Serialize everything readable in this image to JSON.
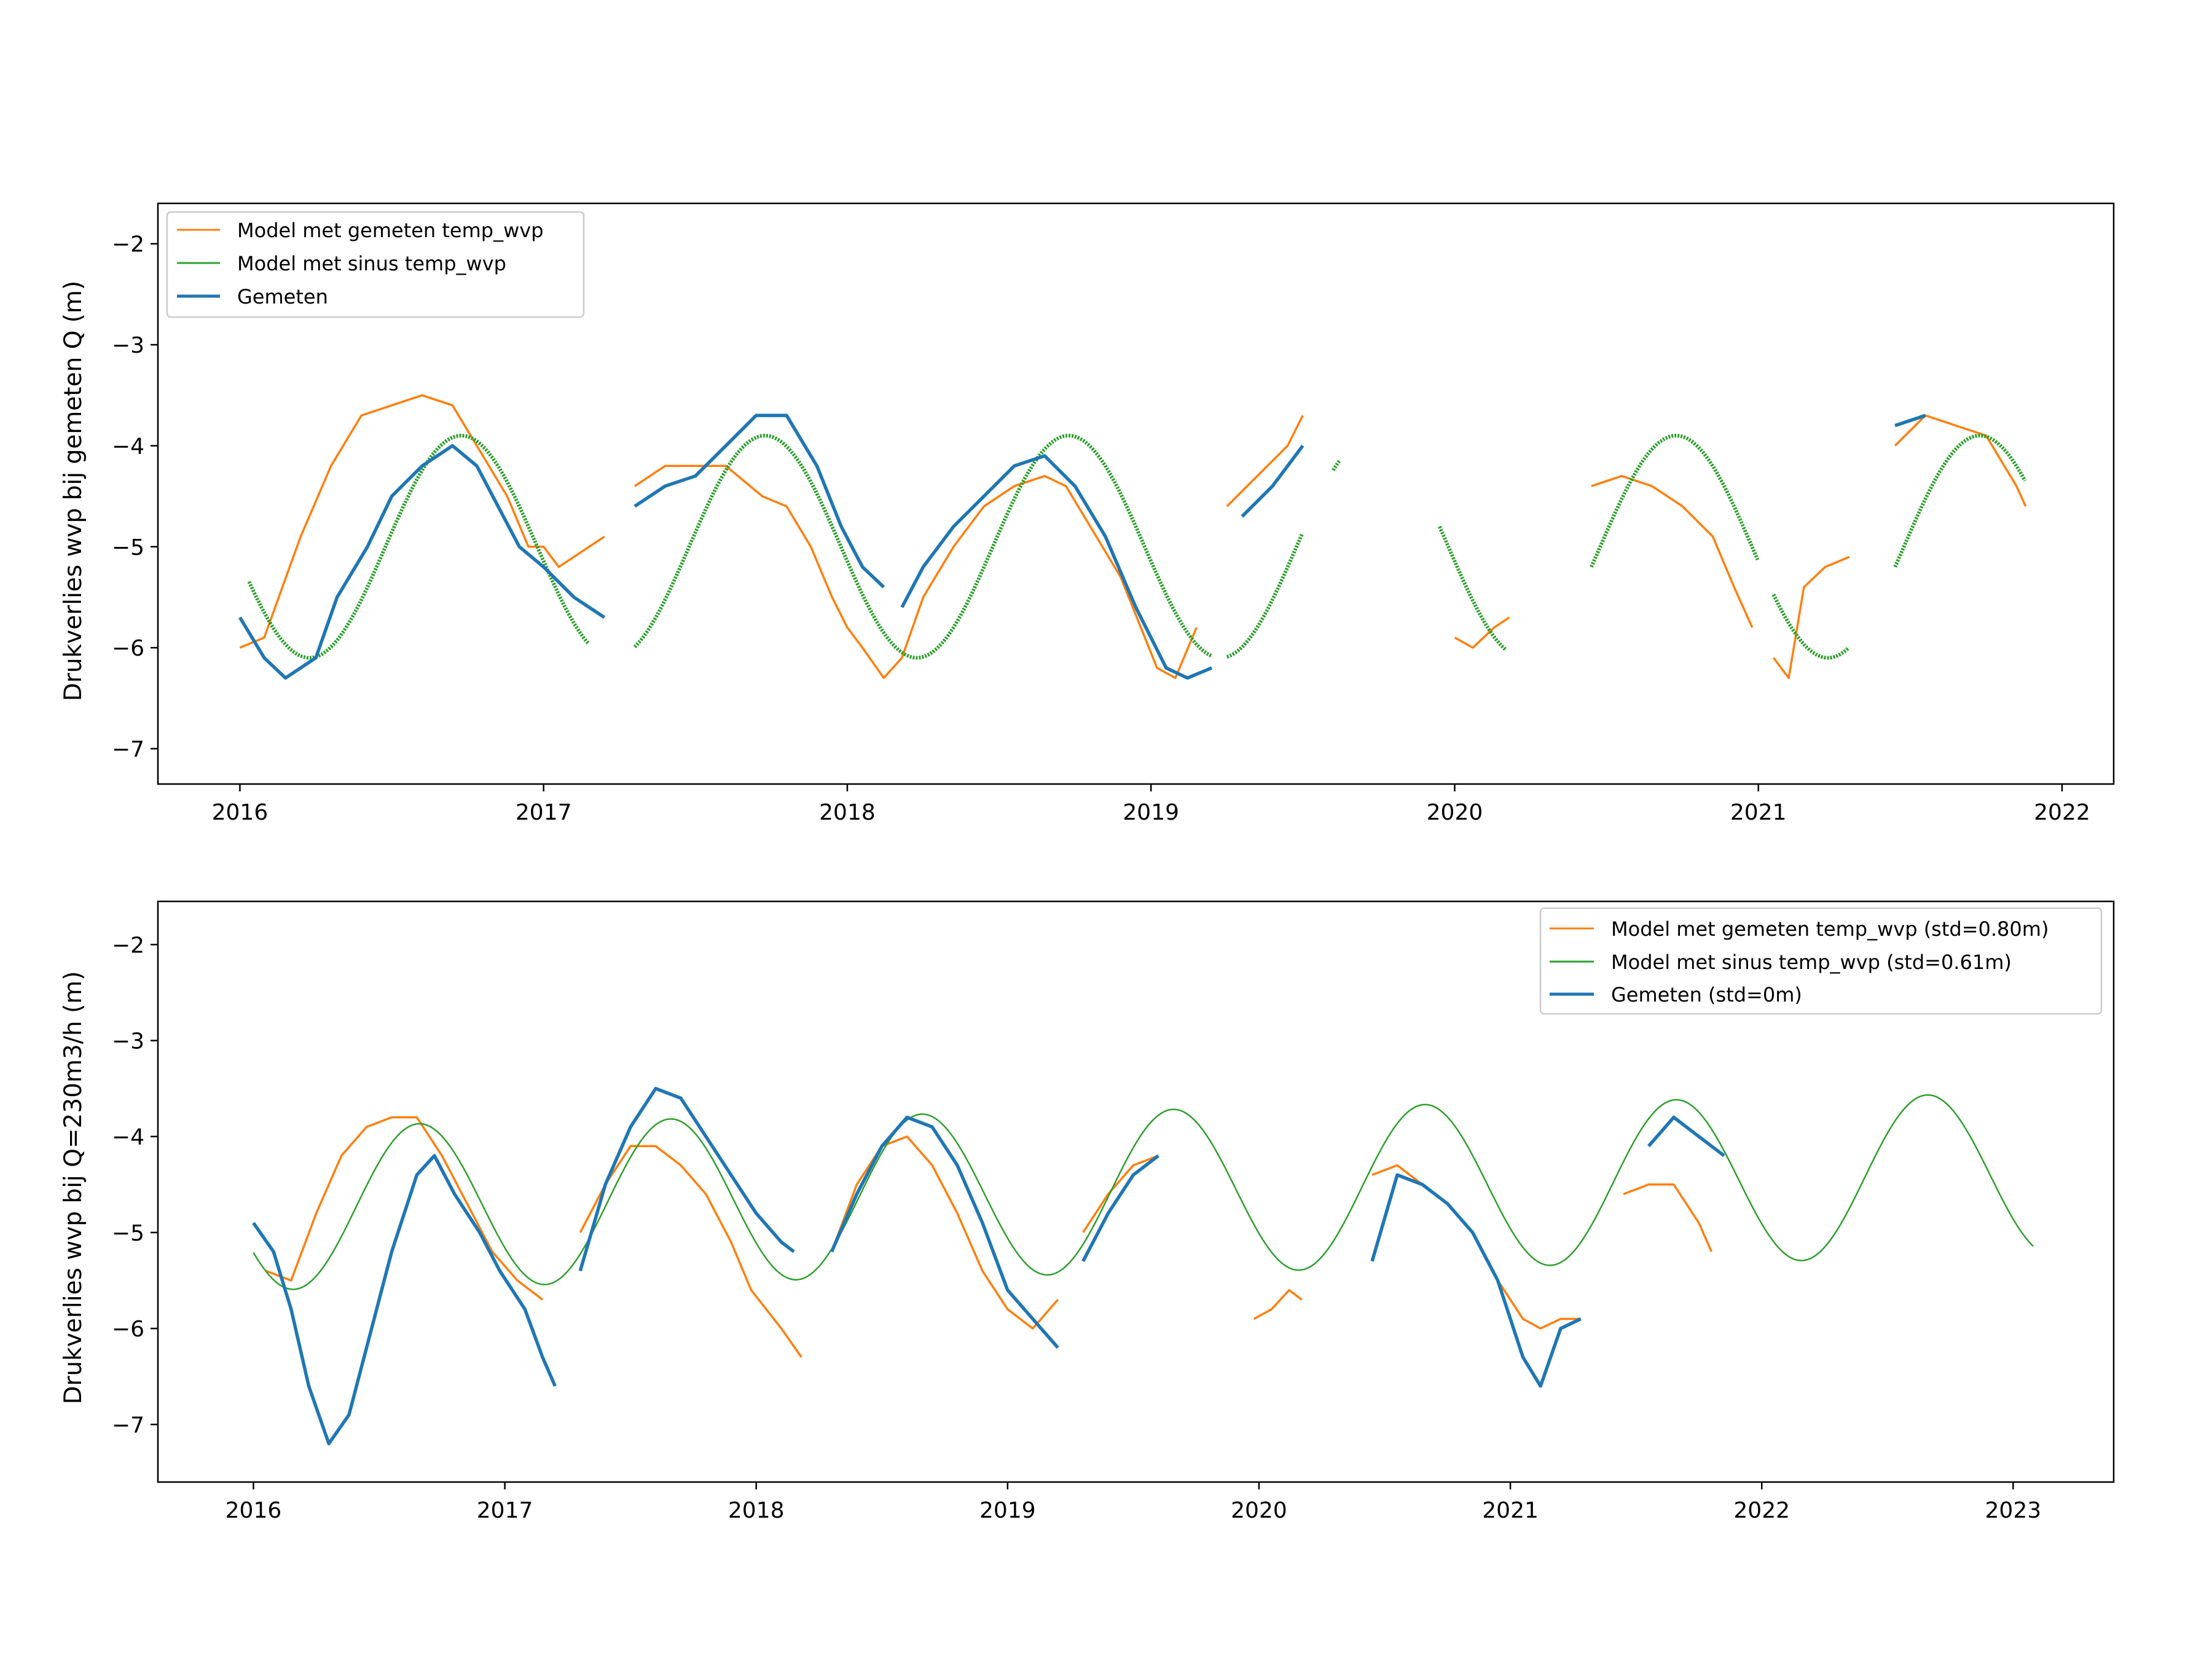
{
  "figure": {
    "background": "#ffffff"
  },
  "colors": {
    "model_measured": "#ff7f0e",
    "model_sine": "#2ca02c",
    "measured": "#1f77b4",
    "frame": "#000000"
  },
  "chart_data": [
    {
      "type": "line",
      "ylabel": "Drukverlies wvp bij gemeten Q (m)",
      "xlabel": "",
      "x_tick_labels": [
        "2016",
        "2017",
        "2018",
        "2019",
        "2020",
        "2021",
        "2022"
      ],
      "x_ticks": [
        2016,
        2017,
        2018,
        2019,
        2020,
        2021,
        2022
      ],
      "y_ticks": [
        -7,
        -6,
        -5,
        -4,
        -3,
        -2
      ],
      "xlim": [
        2015.73,
        2022.17
      ],
      "ylim": [
        -7.35,
        -1.6
      ],
      "grid": false,
      "legend_position": "top-left",
      "series": [
        {
          "name": "Model met gemeten temp_wvp",
          "color": "#ff7f0e",
          "points": [
            [
              2016.0,
              -6.0
            ],
            [
              2016.08,
              -5.9
            ],
            [
              2016.2,
              -4.9
            ],
            [
              2016.3,
              -4.2
            ],
            [
              2016.4,
              -3.7
            ],
            [
              2016.5,
              -3.6
            ],
            [
              2016.6,
              -3.5
            ],
            [
              2016.7,
              -3.6
            ],
            [
              2016.78,
              -4.0
            ],
            [
              2016.88,
              -4.5
            ],
            [
              2016.95,
              -5.0
            ],
            [
              2017.0,
              -5.0
            ],
            [
              2017.05,
              -5.2
            ],
            [
              2017.2,
              -4.9
            ],
            null,
            [
              2017.3,
              -4.4
            ],
            [
              2017.4,
              -4.2
            ],
            [
              2017.5,
              -4.2
            ],
            [
              2017.6,
              -4.2
            ],
            [
              2017.72,
              -4.5
            ],
            [
              2017.8,
              -4.6
            ],
            [
              2017.88,
              -5.0
            ],
            [
              2017.95,
              -5.5
            ],
            [
              2018.0,
              -5.8
            ],
            [
              2018.05,
              -6.0
            ],
            [
              2018.12,
              -6.3
            ],
            [
              2018.18,
              -6.1
            ],
            [
              2018.25,
              -5.5
            ],
            [
              2018.35,
              -5.0
            ],
            [
              2018.45,
              -4.6
            ],
            [
              2018.55,
              -4.4
            ],
            [
              2018.65,
              -4.3
            ],
            [
              2018.72,
              -4.4
            ],
            [
              2018.8,
              -4.8
            ],
            [
              2018.9,
              -5.3
            ],
            [
              2018.98,
              -5.9
            ],
            [
              2019.02,
              -6.2
            ],
            [
              2019.08,
              -6.3
            ],
            [
              2019.15,
              -5.8
            ],
            null,
            [
              2019.25,
              -4.6
            ],
            [
              2019.35,
              -4.3
            ],
            [
              2019.45,
              -4.0
            ],
            [
              2019.5,
              -3.7
            ],
            null,
            [
              2020.0,
              -5.9
            ],
            [
              2020.06,
              -6.0
            ],
            [
              2020.13,
              -5.8
            ],
            [
              2020.18,
              -5.7
            ],
            null,
            [
              2020.45,
              -4.4
            ],
            [
              2020.55,
              -4.3
            ],
            [
              2020.65,
              -4.4
            ],
            [
              2020.75,
              -4.6
            ],
            [
              2020.85,
              -4.9
            ],
            [
              2020.92,
              -5.4
            ],
            [
              2020.98,
              -5.8
            ],
            null,
            [
              2021.05,
              -6.1
            ],
            [
              2021.1,
              -6.3
            ],
            [
              2021.15,
              -5.4
            ],
            [
              2021.22,
              -5.2
            ],
            [
              2021.3,
              -5.1
            ],
            null,
            [
              2021.45,
              -4.0
            ],
            [
              2021.55,
              -3.7
            ],
            [
              2021.65,
              -3.8
            ],
            [
              2021.75,
              -3.9
            ],
            [
              2021.85,
              -4.4
            ],
            [
              2021.88,
              -4.6
            ]
          ]
        },
        {
          "name": "Model met sinus temp_wvp",
          "color": "#2ca02c",
          "sine": true,
          "segments": [
            [
              2016.03,
              2016.2
            ],
            [
              2016.2,
              2017.15
            ],
            [
              2017.3,
              2019.2
            ],
            [
              2019.25,
              2019.5
            ],
            [
              2019.6,
              2019.62
            ],
            [
              2019.95,
              2020.17
            ],
            [
              2020.45,
              2021.0
            ],
            [
              2021.05,
              2021.3
            ],
            [
              2021.45,
              2021.88
            ]
          ]
        },
        {
          "name": "Gemeten",
          "color": "#1f77b4",
          "points": [
            [
              2016.0,
              -5.7
            ],
            [
              2016.08,
              -6.1
            ],
            [
              2016.15,
              -6.3
            ],
            [
              2016.25,
              -6.1
            ],
            [
              2016.32,
              -5.5
            ],
            [
              2016.42,
              -5.0
            ],
            [
              2016.5,
              -4.5
            ],
            [
              2016.6,
              -4.2
            ],
            [
              2016.7,
              -4.0
            ],
            [
              2016.78,
              -4.2
            ],
            [
              2016.85,
              -4.6
            ],
            [
              2016.92,
              -5.0
            ],
            [
              2017.0,
              -5.2
            ],
            [
              2017.1,
              -5.5
            ],
            [
              2017.2,
              -5.7
            ],
            null,
            [
              2017.3,
              -4.6
            ],
            [
              2017.4,
              -4.4
            ],
            [
              2017.5,
              -4.3
            ],
            [
              2017.6,
              -4.0
            ],
            [
              2017.7,
              -3.7
            ],
            [
              2017.8,
              -3.7
            ],
            [
              2017.9,
              -4.2
            ],
            [
              2017.98,
              -4.8
            ],
            [
              2018.05,
              -5.2
            ],
            [
              2018.12,
              -5.4
            ],
            null,
            [
              2018.18,
              -5.6
            ],
            [
              2018.25,
              -5.2
            ],
            [
              2018.35,
              -4.8
            ],
            [
              2018.45,
              -4.5
            ],
            [
              2018.55,
              -4.2
            ],
            [
              2018.65,
              -4.1
            ],
            [
              2018.75,
              -4.4
            ],
            [
              2018.85,
              -4.9
            ],
            [
              2018.95,
              -5.6
            ],
            [
              2019.05,
              -6.2
            ],
            [
              2019.12,
              -6.3
            ],
            [
              2019.2,
              -6.2
            ],
            null,
            [
              2019.3,
              -4.7
            ],
            [
              2019.4,
              -4.4
            ],
            [
              2019.5,
              -4.0
            ],
            null,
            [
              2021.45,
              -3.8
            ],
            [
              2021.55,
              -3.7
            ]
          ]
        }
      ]
    },
    {
      "type": "line",
      "ylabel": "Drukverlies wvp bij Q=230m3/h (m)",
      "xlabel": "",
      "x_tick_labels": [
        "2016",
        "2017",
        "2018",
        "2019",
        "2020",
        "2021",
        "2022",
        "2023"
      ],
      "x_ticks": [
        2016,
        2017,
        2018,
        2019,
        2020,
        2021,
        2022,
        2023
      ],
      "y_ticks": [
        -7,
        -6,
        -5,
        -4,
        -3,
        -2
      ],
      "xlim": [
        2015.62,
        2023.4
      ],
      "ylim": [
        -7.6,
        -1.55
      ],
      "grid": false,
      "legend_position": "top-right",
      "series": [
        {
          "name": "Model met gemeten temp_wvp (std=0.80m)",
          "color": "#ff7f0e",
          "points": [
            [
              2016.05,
              -5.4
            ],
            [
              2016.15,
              -5.5
            ],
            [
              2016.25,
              -4.8
            ],
            [
              2016.35,
              -4.2
            ],
            [
              2016.45,
              -3.9
            ],
            [
              2016.55,
              -3.8
            ],
            [
              2016.65,
              -3.8
            ],
            [
              2016.75,
              -4.2
            ],
            [
              2016.85,
              -4.7
            ],
            [
              2016.95,
              -5.2
            ],
            [
              2017.05,
              -5.5
            ],
            [
              2017.15,
              -5.7
            ],
            null,
            [
              2017.3,
              -5.0
            ],
            [
              2017.4,
              -4.5
            ],
            [
              2017.5,
              -4.1
            ],
            [
              2017.6,
              -4.1
            ],
            [
              2017.7,
              -4.3
            ],
            [
              2017.8,
              -4.6
            ],
            [
              2017.9,
              -5.1
            ],
            [
              2017.98,
              -5.6
            ],
            [
              2018.1,
              -6.0
            ],
            [
              2018.18,
              -6.3
            ],
            null,
            [
              2018.3,
              -5.2
            ],
            [
              2018.4,
              -4.5
            ],
            [
              2018.5,
              -4.1
            ],
            [
              2018.6,
              -4.0
            ],
            [
              2018.7,
              -4.3
            ],
            [
              2018.8,
              -4.8
            ],
            [
              2018.9,
              -5.4
            ],
            [
              2019.0,
              -5.8
            ],
            [
              2019.1,
              -6.0
            ],
            [
              2019.2,
              -5.7
            ],
            null,
            [
              2019.3,
              -5.0
            ],
            [
              2019.4,
              -4.6
            ],
            [
              2019.5,
              -4.3
            ],
            [
              2019.6,
              -4.2
            ],
            null,
            [
              2019.98,
              -5.9
            ],
            [
              2020.05,
              -5.8
            ],
            [
              2020.12,
              -5.6
            ],
            [
              2020.17,
              -5.7
            ],
            null,
            [
              2020.45,
              -4.4
            ],
            [
              2020.55,
              -4.3
            ],
            [
              2020.65,
              -4.5
            ],
            [
              2020.75,
              -4.7
            ],
            [
              2020.85,
              -5.0
            ],
            [
              2020.95,
              -5.5
            ],
            [
              2021.05,
              -5.9
            ],
            [
              2021.12,
              -6.0
            ],
            [
              2021.2,
              -5.9
            ],
            [
              2021.28,
              -5.9
            ],
            null,
            [
              2021.45,
              -4.6
            ],
            [
              2021.55,
              -4.5
            ],
            [
              2021.65,
              -4.5
            ],
            [
              2021.75,
              -4.9
            ],
            [
              2021.8,
              -5.2
            ]
          ]
        },
        {
          "name": "Model met sinus temp_wvp (std=0.61m)",
          "color": "#2ca02c",
          "sine": true,
          "segments": [
            [
              2016.0,
              2023.08
            ]
          ]
        },
        {
          "name": "Gemeten (std=0m)",
          "color": "#1f77b4",
          "points": [
            [
              2016.0,
              -4.9
            ],
            [
              2016.08,
              -5.2
            ],
            [
              2016.15,
              -5.8
            ],
            [
              2016.22,
              -6.6
            ],
            [
              2016.3,
              -7.2
            ],
            [
              2016.38,
              -6.9
            ],
            [
              2016.45,
              -6.2
            ],
            [
              2016.55,
              -5.2
            ],
            [
              2016.65,
              -4.4
            ],
            [
              2016.72,
              -4.2
            ],
            [
              2016.8,
              -4.6
            ],
            [
              2016.9,
              -5.0
            ],
            [
              2016.98,
              -5.4
            ],
            [
              2017.08,
              -5.8
            ],
            [
              2017.15,
              -6.3
            ],
            [
              2017.2,
              -6.6
            ],
            null,
            [
              2017.3,
              -5.4
            ],
            [
              2017.4,
              -4.5
            ],
            [
              2017.5,
              -3.9
            ],
            [
              2017.6,
              -3.5
            ],
            [
              2017.7,
              -3.6
            ],
            [
              2017.8,
              -4.0
            ],
            [
              2017.9,
              -4.4
            ],
            [
              2018.0,
              -4.8
            ],
            [
              2018.1,
              -5.1
            ],
            [
              2018.15,
              -5.2
            ],
            null,
            [
              2018.3,
              -5.2
            ],
            [
              2018.4,
              -4.6
            ],
            [
              2018.5,
              -4.1
            ],
            [
              2018.6,
              -3.8
            ],
            [
              2018.7,
              -3.9
            ],
            [
              2018.8,
              -4.3
            ],
            [
              2018.9,
              -4.9
            ],
            [
              2019.0,
              -5.6
            ],
            [
              2019.1,
              -5.9
            ],
            [
              2019.2,
              -6.2
            ],
            null,
            [
              2019.3,
              -5.3
            ],
            [
              2019.4,
              -4.8
            ],
            [
              2019.5,
              -4.4
            ],
            [
              2019.6,
              -4.2
            ],
            null,
            [
              2020.45,
              -5.3
            ],
            [
              2020.55,
              -4.4
            ],
            [
              2020.65,
              -4.5
            ],
            [
              2020.75,
              -4.7
            ],
            [
              2020.85,
              -5.0
            ],
            [
              2020.95,
              -5.5
            ],
            [
              2021.05,
              -6.3
            ],
            [
              2021.12,
              -6.6
            ],
            [
              2021.2,
              -6.0
            ],
            [
              2021.28,
              -5.9
            ],
            null,
            [
              2021.55,
              -4.1
            ],
            [
              2021.65,
              -3.8
            ],
            [
              2021.75,
              -4.0
            ],
            [
              2021.85,
              -4.2
            ]
          ]
        }
      ]
    }
  ]
}
